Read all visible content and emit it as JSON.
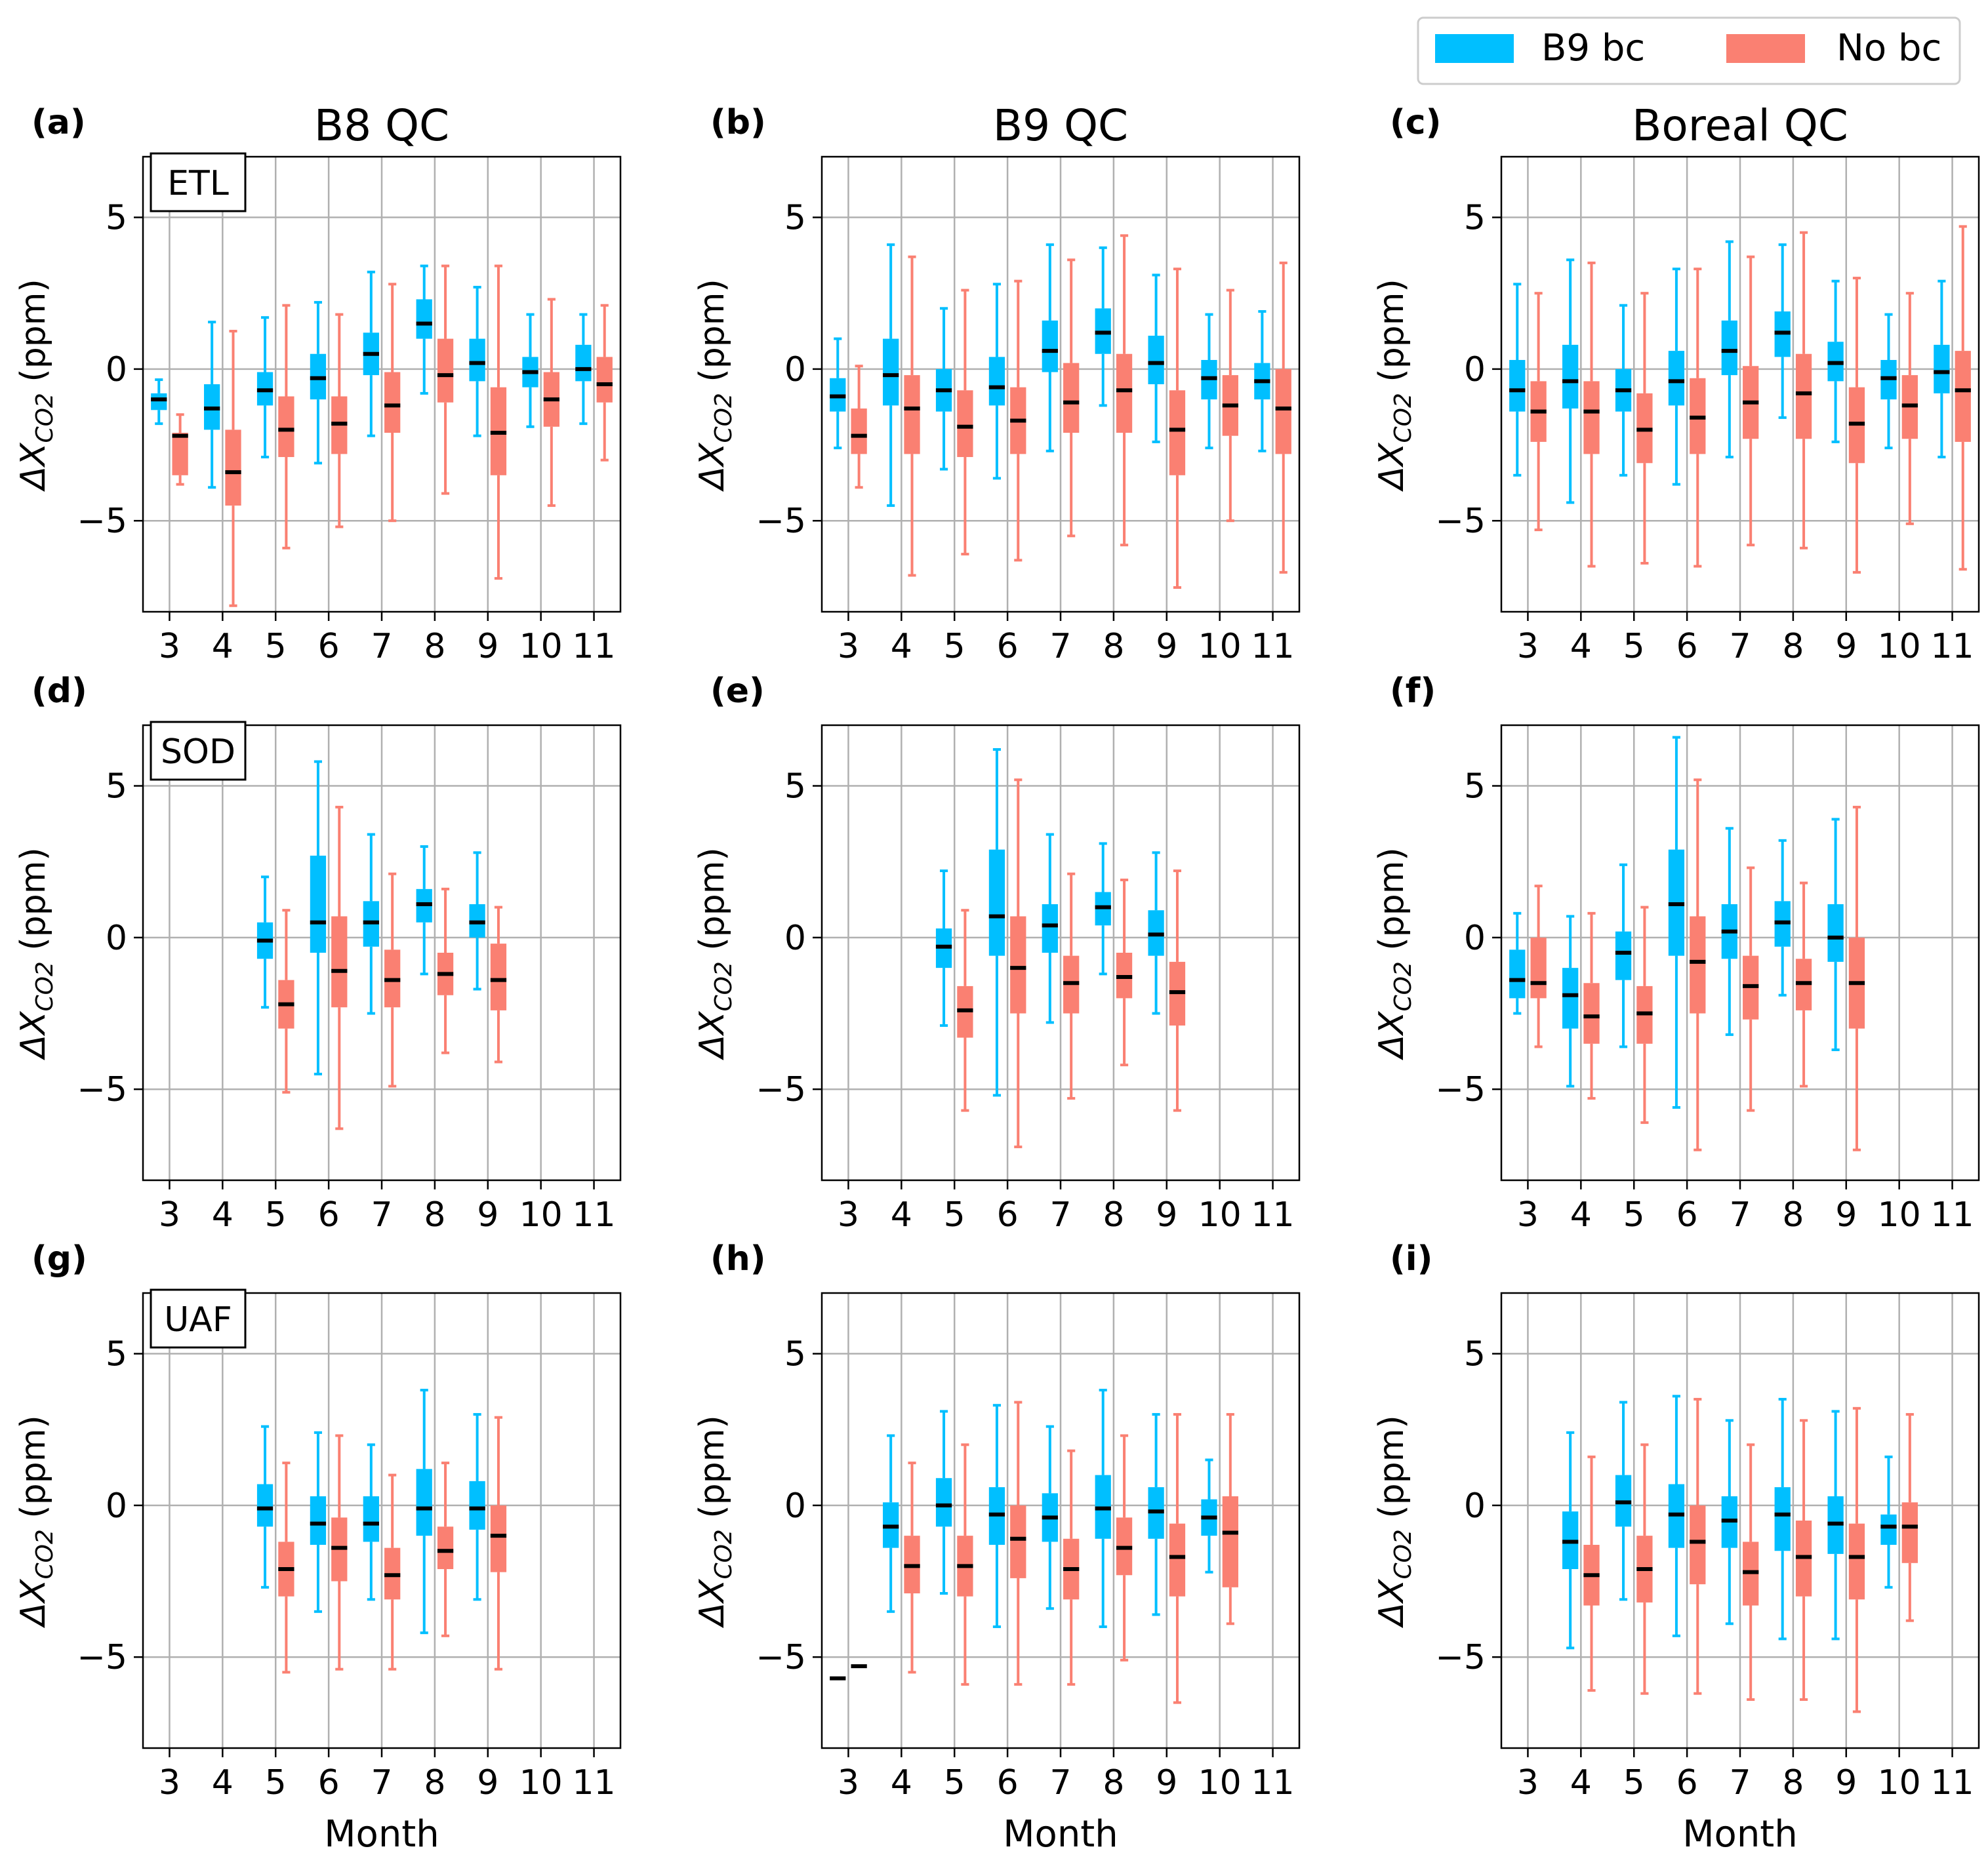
{
  "legend": {
    "placement": "top-right",
    "entries": [
      {
        "label": "B9 bc",
        "color": "#00BFFF"
      },
      {
        "label": "No bc",
        "color": "#FA8072"
      }
    ]
  },
  "columns": [
    "B8 QC",
    "B9 QC",
    "Boreal QC"
  ],
  "rows": [
    "ETL",
    "SOD",
    "UAF"
  ],
  "xlabel": "Month",
  "ylabel_main": "ΔX",
  "ylabel_sub": "CO2",
  "ylabel_unit": " (ppm)",
  "colors": {
    "grid": "#b0b0b0",
    "median": "#000000"
  },
  "chart_data": {
    "type": "boxplot",
    "box_order": [
      "whisker_low",
      "q1",
      "median",
      "q3",
      "whisker_high"
    ],
    "xlim": [
      2.5,
      11.5
    ],
    "ylim": [
      -8,
      7
    ],
    "xticks": [
      3,
      4,
      5,
      6,
      7,
      8,
      9,
      10,
      11
    ],
    "yticks": [
      -5,
      0,
      5
    ],
    "ytick_labels": [
      "−5",
      "0",
      "5"
    ],
    "grid": true,
    "panels": [
      {
        "label": "(a)",
        "title": "B8 QC",
        "station": "ETL",
        "blue": [
          [
            -1.8,
            -1.35,
            -1.0,
            -0.8,
            -0.35
          ],
          [
            -3.9,
            -2.0,
            -1.3,
            -0.5,
            1.55
          ],
          [
            -2.9,
            -1.2,
            -0.7,
            -0.1,
            1.7
          ],
          [
            -3.1,
            -1.0,
            -0.3,
            0.5,
            2.2
          ],
          [
            -2.2,
            -0.2,
            0.5,
            1.2,
            3.2
          ],
          [
            -0.8,
            1.0,
            1.5,
            2.3,
            3.4
          ],
          [
            -2.2,
            -0.4,
            0.2,
            1.0,
            2.7
          ],
          [
            -1.9,
            -0.6,
            -0.1,
            0.4,
            1.8
          ],
          [
            -1.8,
            -0.4,
            0.0,
            0.8,
            1.8
          ]
        ],
        "red": [
          [
            -3.8,
            -3.5,
            -2.2,
            -2.1,
            -1.5
          ],
          [
            -7.8,
            -4.5,
            -3.4,
            -2.0,
            1.25
          ],
          [
            -5.9,
            -2.9,
            -2.0,
            -0.9,
            2.1
          ],
          [
            -5.2,
            -2.8,
            -1.8,
            -0.9,
            1.8
          ],
          [
            -5.0,
            -2.1,
            -1.2,
            -0.1,
            2.8
          ],
          [
            -4.1,
            -1.1,
            -0.2,
            1.0,
            3.4
          ],
          [
            -6.9,
            -3.5,
            -2.1,
            -0.6,
            3.4
          ],
          [
            -4.5,
            -1.9,
            -1.0,
            -0.1,
            2.3
          ],
          [
            -3.0,
            -1.1,
            -0.5,
            0.4,
            2.1
          ]
        ]
      },
      {
        "label": "(b)",
        "title": "B9 QC",
        "station": "",
        "blue": [
          [
            -2.6,
            -1.4,
            -0.9,
            -0.3,
            1.0
          ],
          [
            -4.5,
            -1.2,
            -0.2,
            1.0,
            4.1
          ],
          [
            -3.3,
            -1.4,
            -0.7,
            0.0,
            2.0
          ],
          [
            -3.6,
            -1.2,
            -0.6,
            0.4,
            2.8
          ],
          [
            -2.7,
            -0.1,
            0.6,
            1.6,
            4.1
          ],
          [
            -1.2,
            0.5,
            1.2,
            2.0,
            4.0
          ],
          [
            -2.4,
            -0.5,
            0.2,
            1.1,
            3.1
          ],
          [
            -2.6,
            -1.0,
            -0.3,
            0.3,
            1.8
          ],
          [
            -2.7,
            -1.0,
            -0.4,
            0.2,
            1.9
          ]
        ],
        "red": [
          [
            -3.9,
            -2.8,
            -2.2,
            -1.3,
            0.1
          ],
          [
            -6.8,
            -2.8,
            -1.3,
            -0.2,
            3.7
          ],
          [
            -6.1,
            -2.9,
            -1.9,
            -0.7,
            2.6
          ],
          [
            -6.3,
            -2.8,
            -1.7,
            -0.6,
            2.9
          ],
          [
            -5.5,
            -2.1,
            -1.1,
            0.2,
            3.6
          ],
          [
            -5.8,
            -2.1,
            -0.7,
            0.5,
            4.4
          ],
          [
            -7.2,
            -3.5,
            -2.0,
            -0.7,
            3.3
          ],
          [
            -5.0,
            -2.2,
            -1.2,
            -0.2,
            2.6
          ],
          [
            -6.7,
            -2.8,
            -1.3,
            0.0,
            3.5
          ]
        ]
      },
      {
        "label": "(c)",
        "title": "Boreal QC",
        "station": "",
        "blue": [
          [
            -3.5,
            -1.4,
            -0.7,
            0.3,
            2.8
          ],
          [
            -4.4,
            -1.3,
            -0.4,
            0.8,
            3.6
          ],
          [
            -3.5,
            -1.4,
            -0.7,
            0.0,
            2.1
          ],
          [
            -3.8,
            -1.2,
            -0.4,
            0.6,
            3.3
          ],
          [
            -2.9,
            -0.2,
            0.6,
            1.6,
            4.2
          ],
          [
            -1.6,
            0.4,
            1.2,
            1.9,
            4.1
          ],
          [
            -2.4,
            -0.4,
            0.2,
            0.9,
            2.9
          ],
          [
            -2.6,
            -1.0,
            -0.3,
            0.3,
            1.8
          ],
          [
            -2.9,
            -0.8,
            -0.1,
            0.8,
            2.9
          ]
        ],
        "red": [
          [
            -5.3,
            -2.4,
            -1.4,
            -0.4,
            2.5
          ],
          [
            -6.5,
            -2.8,
            -1.4,
            -0.4,
            3.5
          ],
          [
            -6.4,
            -3.1,
            -2.0,
            -0.8,
            2.5
          ],
          [
            -6.5,
            -2.8,
            -1.6,
            -0.3,
            3.3
          ],
          [
            -5.8,
            -2.3,
            -1.1,
            0.1,
            3.7
          ],
          [
            -5.9,
            -2.3,
            -0.8,
            0.5,
            4.5
          ],
          [
            -6.7,
            -3.1,
            -1.8,
            -0.6,
            3.0
          ],
          [
            -5.1,
            -2.3,
            -1.2,
            -0.2,
            2.5
          ],
          [
            -6.6,
            -2.4,
            -0.7,
            0.6,
            4.7
          ]
        ]
      },
      {
        "label": "(d)",
        "title": "",
        "station": "SOD",
        "blue": [
          null,
          null,
          [
            -2.3,
            -0.7,
            -0.1,
            0.5,
            2.0
          ],
          [
            -4.5,
            -0.5,
            0.5,
            2.7,
            5.8
          ],
          [
            -2.5,
            -0.3,
            0.5,
            1.2,
            3.4
          ],
          [
            -1.2,
            0.5,
            1.1,
            1.6,
            3.0
          ],
          [
            -1.7,
            0.0,
            0.5,
            1.1,
            2.8
          ],
          null,
          null
        ],
        "red": [
          null,
          null,
          [
            -5.1,
            -3.0,
            -2.2,
            -1.4,
            0.9
          ],
          [
            -6.3,
            -2.3,
            -1.1,
            0.7,
            4.3
          ],
          [
            -4.9,
            -2.3,
            -1.4,
            -0.4,
            2.1
          ],
          [
            -3.8,
            -1.9,
            -1.2,
            -0.5,
            1.6
          ],
          [
            -4.1,
            -2.4,
            -1.4,
            -0.2,
            1.0
          ],
          null,
          null
        ]
      },
      {
        "label": "(e)",
        "title": "",
        "station": "",
        "blue": [
          null,
          null,
          [
            -2.9,
            -1.0,
            -0.3,
            0.3,
            2.2
          ],
          [
            -5.2,
            -0.6,
            0.7,
            2.9,
            6.2
          ],
          [
            -2.8,
            -0.5,
            0.4,
            1.1,
            3.4
          ],
          [
            -1.2,
            0.4,
            1.0,
            1.5,
            3.1
          ],
          [
            -2.5,
            -0.6,
            0.1,
            0.9,
            2.8
          ],
          null,
          null
        ],
        "red": [
          null,
          null,
          [
            -5.7,
            -3.3,
            -2.4,
            -1.6,
            0.9
          ],
          [
            -6.9,
            -2.5,
            -1.0,
            0.7,
            5.2
          ],
          [
            -5.3,
            -2.5,
            -1.5,
            -0.6,
            2.1
          ],
          [
            -4.2,
            -2.0,
            -1.3,
            -0.5,
            1.9
          ],
          [
            -5.7,
            -2.9,
            -1.8,
            -0.8,
            2.2
          ],
          null,
          null
        ]
      },
      {
        "label": "(f)",
        "title": "",
        "station": "",
        "blue": [
          [
            -2.5,
            -2.0,
            -1.4,
            -0.4,
            0.8
          ],
          [
            -4.9,
            -3.0,
            -1.9,
            -1.0,
            0.7
          ],
          [
            -3.6,
            -1.4,
            -0.5,
            0.2,
            2.4
          ],
          [
            -5.6,
            -0.6,
            1.1,
            2.9,
            6.6
          ],
          [
            -3.2,
            -0.7,
            0.2,
            1.1,
            3.6
          ],
          [
            -1.9,
            -0.3,
            0.5,
            1.2,
            3.2
          ],
          [
            -3.7,
            -0.8,
            0.0,
            1.1,
            3.9
          ],
          null,
          null
        ],
        "red": [
          [
            -3.6,
            -2.0,
            -1.5,
            0.0,
            1.7
          ],
          [
            -5.3,
            -3.5,
            -2.6,
            -1.5,
            0.8
          ],
          [
            -6.1,
            -3.5,
            -2.5,
            -1.6,
            1.0
          ],
          [
            -7.0,
            -2.5,
            -0.8,
            0.7,
            5.2
          ],
          [
            -5.7,
            -2.7,
            -1.6,
            -0.6,
            2.3
          ],
          [
            -4.9,
            -2.4,
            -1.5,
            -0.7,
            1.8
          ],
          [
            -7.0,
            -3.0,
            -1.5,
            0.0,
            4.3
          ],
          null,
          null
        ]
      },
      {
        "label": "(g)",
        "title": "",
        "station": "UAF",
        "blue": [
          null,
          null,
          [
            -2.7,
            -0.7,
            -0.1,
            0.7,
            2.6
          ],
          [
            -3.5,
            -1.3,
            -0.6,
            0.3,
            2.4
          ],
          [
            -3.1,
            -1.2,
            -0.6,
            0.3,
            2.0
          ],
          [
            -4.2,
            -1.0,
            -0.1,
            1.2,
            3.8
          ],
          [
            -3.1,
            -0.8,
            -0.1,
            0.8,
            3.0
          ],
          null,
          null
        ],
        "red": [
          null,
          null,
          [
            -5.5,
            -3.0,
            -2.1,
            -1.2,
            1.4
          ],
          [
            -5.4,
            -2.5,
            -1.4,
            -0.4,
            2.3
          ],
          [
            -5.4,
            -3.1,
            -2.3,
            -1.4,
            1.0
          ],
          [
            -4.3,
            -2.1,
            -1.5,
            -0.7,
            1.4
          ],
          [
            -5.4,
            -2.2,
            -1.0,
            0.0,
            2.9
          ],
          null,
          null
        ]
      },
      {
        "label": "(h)",
        "title": "",
        "station": "",
        "blue": [
          [
            -5.7,
            -5.7,
            -5.7,
            -5.7,
            -5.7
          ],
          [
            -3.5,
            -1.4,
            -0.7,
            0.1,
            2.3
          ],
          [
            -2.9,
            -0.7,
            0.0,
            0.9,
            3.1
          ],
          [
            -4.0,
            -1.3,
            -0.3,
            0.6,
            3.3
          ],
          [
            -3.4,
            -1.2,
            -0.4,
            0.4,
            2.6
          ],
          [
            -4.0,
            -1.1,
            -0.1,
            1.0,
            3.8
          ],
          [
            -3.6,
            -1.1,
            -0.2,
            0.6,
            3.0
          ],
          [
            -2.2,
            -1.0,
            -0.4,
            0.2,
            1.5
          ],
          null
        ],
        "red": [
          [
            -5.3,
            -5.3,
            -5.3,
            -5.3,
            -5.3
          ],
          [
            -5.5,
            -2.9,
            -2.0,
            -1.0,
            1.4
          ],
          [
            -5.9,
            -3.0,
            -2.0,
            -1.0,
            2.0
          ],
          [
            -5.9,
            -2.4,
            -1.1,
            0.0,
            3.4
          ],
          [
            -5.9,
            -3.1,
            -2.1,
            -1.1,
            1.8
          ],
          [
            -5.1,
            -2.3,
            -1.4,
            -0.4,
            2.3
          ],
          [
            -6.5,
            -3.0,
            -1.7,
            -0.6,
            3.0
          ],
          [
            -3.9,
            -2.7,
            -0.9,
            0.3,
            3.0
          ],
          null
        ]
      },
      {
        "label": "(i)",
        "title": "",
        "station": "",
        "blue": [
          null,
          [
            -4.7,
            -2.1,
            -1.2,
            -0.2,
            2.4
          ],
          [
            -3.1,
            -0.7,
            0.1,
            1.0,
            3.4
          ],
          [
            -4.3,
            -1.4,
            -0.3,
            0.7,
            3.6
          ],
          [
            -3.9,
            -1.4,
            -0.5,
            0.3,
            2.8
          ],
          [
            -4.4,
            -1.5,
            -0.3,
            0.6,
            3.5
          ],
          [
            -4.4,
            -1.6,
            -0.6,
            0.3,
            3.1
          ],
          [
            -2.7,
            -1.3,
            -0.7,
            -0.3,
            1.6
          ],
          null
        ],
        "red": [
          null,
          [
            -6.1,
            -3.3,
            -2.3,
            -1.3,
            1.6
          ],
          [
            -6.2,
            -3.2,
            -2.1,
            -1.0,
            2.0
          ],
          [
            -6.2,
            -2.6,
            -1.2,
            0.0,
            3.5
          ],
          [
            -6.4,
            -3.3,
            -2.2,
            -1.2,
            2.0
          ],
          [
            -6.4,
            -3.0,
            -1.7,
            -0.5,
            2.8
          ],
          [
            -6.8,
            -3.1,
            -1.7,
            -0.6,
            3.2
          ],
          [
            -3.8,
            -1.9,
            -0.7,
            0.1,
            3.0
          ],
          null
        ]
      }
    ]
  }
}
